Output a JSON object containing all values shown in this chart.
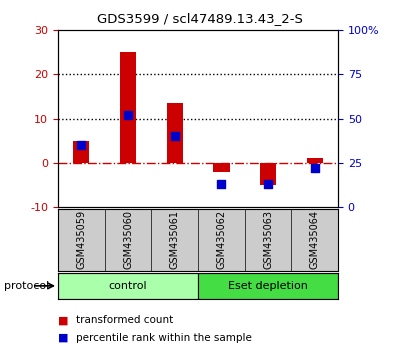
{
  "title": "GDS3599 / scl47489.13.43_2-S",
  "samples": [
    "GSM435059",
    "GSM435060",
    "GSM435061",
    "GSM435062",
    "GSM435063",
    "GSM435064"
  ],
  "red_values": [
    5,
    25,
    13.5,
    -2,
    -5,
    1
  ],
  "blue_values_pct": [
    35,
    52,
    40,
    13,
    13,
    22
  ],
  "ylim_left": [
    -10,
    30
  ],
  "ylim_right": [
    0,
    100
  ],
  "yticks_left": [
    -10,
    0,
    10,
    20,
    30
  ],
  "yticks_right": [
    0,
    25,
    50,
    75,
    100
  ],
  "ytick_labels_right": [
    "0",
    "25",
    "50",
    "75",
    "100%"
  ],
  "hlines": [
    20,
    10
  ],
  "hline_zero_color": "#cc0000",
  "dotted_line_color": "black",
  "bar_color": "#cc0000",
  "dot_color": "#0000cc",
  "control_color": "#aaffaa",
  "eset_color": "#44dd44",
  "protocol_label": "protocol",
  "legend_red": "transformed count",
  "legend_blue": "percentile rank within the sample",
  "bg_color": "white",
  "tick_label_area_color": "#cccccc",
  "bar_width": 0.35,
  "dot_size": 40
}
